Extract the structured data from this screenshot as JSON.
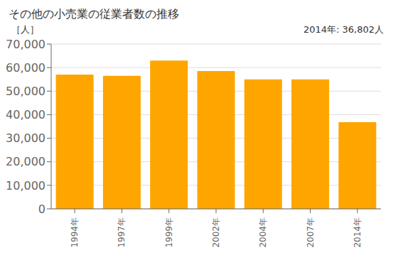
{
  "chart_data": {
    "type": "bar",
    "title": "その他の小売業の従業者数の推移",
    "ylabel": "［人］",
    "annotation": "2014年: 36,802人",
    "categories": [
      "1994年",
      "1997年",
      "1999年",
      "2002年",
      "2004年",
      "2007年",
      "2014年"
    ],
    "values": [
      57000,
      56500,
      63000,
      58500,
      55000,
      55000,
      36802
    ],
    "color": "#FFA500",
    "ylim": [
      0,
      70000
    ],
    "yticks": [
      0,
      {
        "value": 10000,
        "label": "10,000"
      },
      {
        "value": 20000,
        "label": "20,000"
      },
      {
        "value": 30000,
        "label": "30,000"
      },
      {
        "value": 40000,
        "label": "40,000"
      },
      {
        "value": 50000,
        "label": "50,000"
      },
      {
        "value": 60000,
        "label": "60,000"
      },
      {
        "value": 70000,
        "label": "70,000"
      }
    ],
    "grid": true
  }
}
